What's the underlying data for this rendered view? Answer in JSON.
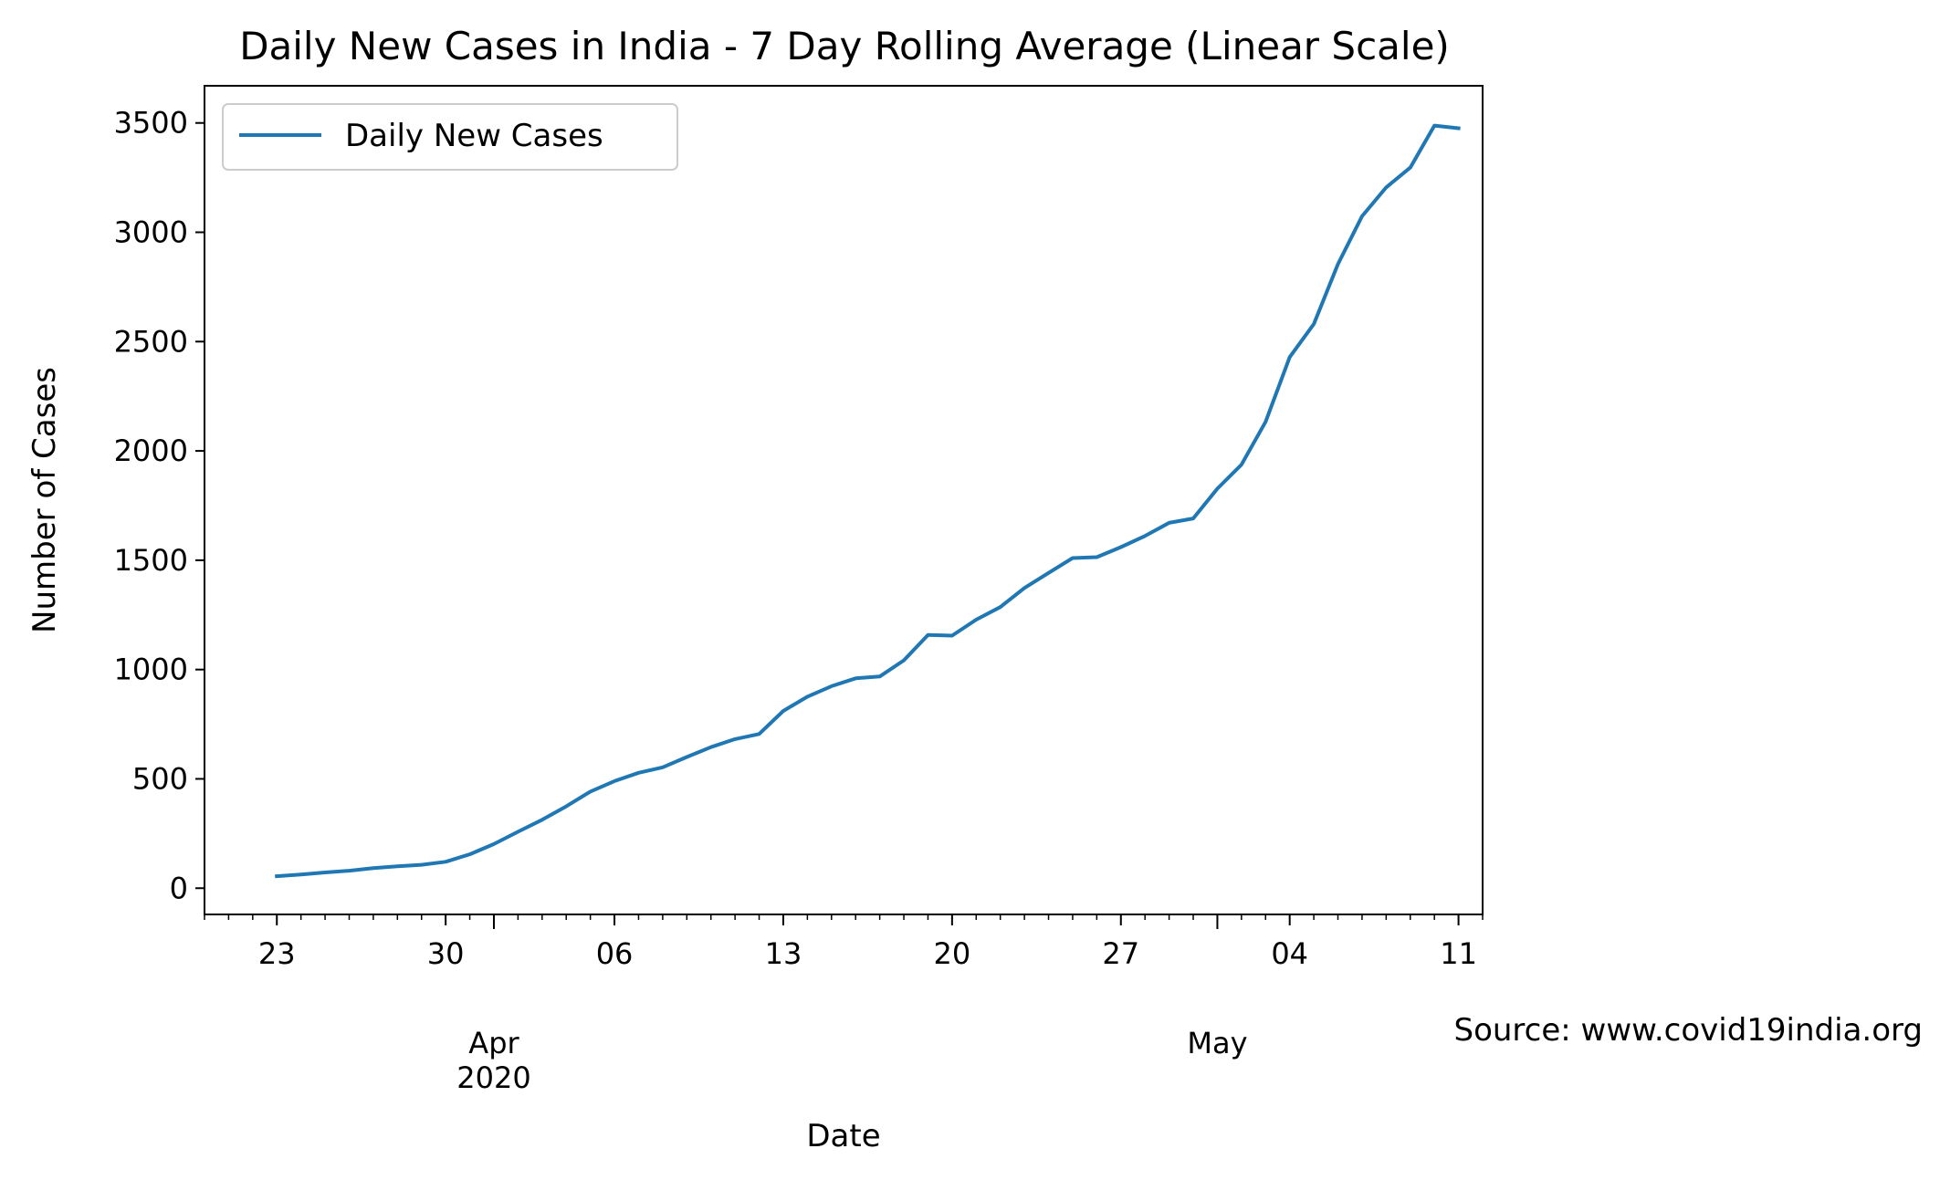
{
  "chart_data": {
    "type": "line",
    "title": "Daily New Cases in India - 7 Day Rolling Average (Linear Scale)",
    "xlabel": "Date",
    "ylabel": "Number of Cases",
    "source_note": "Source: www.covid19india.org",
    "legend": {
      "placement": "top-left",
      "entries": [
        "Daily New Cases"
      ]
    },
    "grid": false,
    "line_color": "#1f77b4",
    "xlim": [
      "2020-03-20",
      "2020-05-12"
    ],
    "ylim": [
      -120,
      3670
    ],
    "y_ticks": [
      0,
      500,
      1000,
      1500,
      2000,
      2500,
      3000,
      3500
    ],
    "x_major_ticks": [
      {
        "date": "2020-03-23",
        "label": "23"
      },
      {
        "date": "2020-03-30",
        "label": "30"
      },
      {
        "date": "2020-04-06",
        "label": "06"
      },
      {
        "date": "2020-04-13",
        "label": "13"
      },
      {
        "date": "2020-04-20",
        "label": "20"
      },
      {
        "date": "2020-04-27",
        "label": "27"
      },
      {
        "date": "2020-05-04",
        "label": "04"
      },
      {
        "date": "2020-05-11",
        "label": "11"
      }
    ],
    "x_month_ticks": [
      {
        "date": "2020-04-01",
        "label": "Apr",
        "sublabel": "2020"
      },
      {
        "date": "2020-05-01",
        "label": "May",
        "sublabel": ""
      }
    ],
    "series": [
      {
        "name": "Daily New Cases",
        "x": [
          "2020-03-23",
          "2020-03-24",
          "2020-03-25",
          "2020-03-26",
          "2020-03-27",
          "2020-03-28",
          "2020-03-29",
          "2020-03-30",
          "2020-03-31",
          "2020-04-01",
          "2020-04-02",
          "2020-04-03",
          "2020-04-04",
          "2020-04-05",
          "2020-04-06",
          "2020-04-07",
          "2020-04-08",
          "2020-04-09",
          "2020-04-10",
          "2020-04-11",
          "2020-04-12",
          "2020-04-13",
          "2020-04-14",
          "2020-04-15",
          "2020-04-16",
          "2020-04-17",
          "2020-04-18",
          "2020-04-19",
          "2020-04-20",
          "2020-04-21",
          "2020-04-22",
          "2020-04-23",
          "2020-04-24",
          "2020-04-25",
          "2020-04-26",
          "2020-04-27",
          "2020-04-28",
          "2020-04-29",
          "2020-04-30",
          "2020-05-01",
          "2020-05-02",
          "2020-05-03",
          "2020-05-04",
          "2020-05-05",
          "2020-05-06",
          "2020-05-07",
          "2020-05-08",
          "2020-05-09",
          "2020-05-10",
          "2020-05-11"
        ],
        "values": [
          55,
          63,
          72,
          80,
          92,
          100,
          107,
          121,
          155,
          202,
          258,
          313,
          374,
          442,
          490,
          528,
          553,
          600,
          645,
          682,
          705,
          811,
          876,
          924,
          960,
          968,
          1042,
          1158,
          1155,
          1228,
          1286,
          1373,
          1442,
          1510,
          1514,
          1560,
          1611,
          1671,
          1691,
          1827,
          1937,
          2133,
          2429,
          2580,
          2854,
          3073,
          3205,
          3296,
          3488,
          3476
        ]
      }
    ]
  }
}
